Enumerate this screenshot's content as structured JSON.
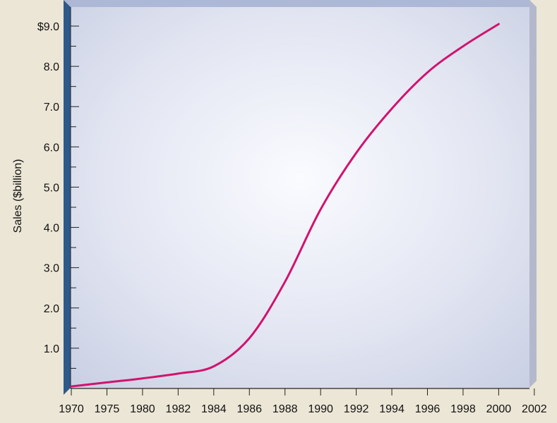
{
  "colors": {
    "background": "#ece6d6",
    "plot_edge": "#e6ecf8",
    "plot_center": "#fafbff",
    "plot_outer": "#c8cfe3",
    "left_wall": "#2d5a8a",
    "top_bevel": "#adb8d6",
    "right_bevel": "#b4b8cc",
    "line": "#d1136f"
  },
  "chart_data": {
    "type": "line",
    "ylabel": "Sales ($billion)",
    "x_categories": [
      "1970",
      "1975",
      "1980",
      "1982",
      "1984",
      "1986",
      "1988",
      "1990",
      "1992",
      "1994",
      "1996",
      "1998",
      "2000",
      "2002"
    ],
    "y_ticks": [
      {
        "value": 1.0,
        "label": "1.0"
      },
      {
        "value": 2.0,
        "label": "2.0"
      },
      {
        "value": 3.0,
        "label": "3.0"
      },
      {
        "value": 4.0,
        "label": "4.0"
      },
      {
        "value": 5.0,
        "label": "5.0"
      },
      {
        "value": 6.0,
        "label": "6.0"
      },
      {
        "value": 7.0,
        "label": "7.0"
      },
      {
        "value": 8.0,
        "label": "8.0"
      },
      {
        "value": 9.0,
        "label": "$9.0"
      }
    ],
    "ylim": [
      0,
      9.0
    ],
    "grid": false,
    "series": [
      {
        "points": [
          {
            "x": 0,
            "y": 0.05
          },
          {
            "x": 1,
            "y": 0.15
          },
          {
            "x": 2,
            "y": 0.25
          },
          {
            "x": 3,
            "y": 0.37
          },
          {
            "x": 4,
            "y": 0.55
          },
          {
            "x": 5,
            "y": 1.25
          },
          {
            "x": 6,
            "y": 2.65
          },
          {
            "x": 7,
            "y": 4.45
          },
          {
            "x": 8,
            "y": 5.85
          },
          {
            "x": 9,
            "y": 6.95
          },
          {
            "x": 10,
            "y": 7.85
          },
          {
            "x": 11,
            "y": 8.5
          },
          {
            "x": 12,
            "y": 9.05
          }
        ]
      }
    ]
  }
}
